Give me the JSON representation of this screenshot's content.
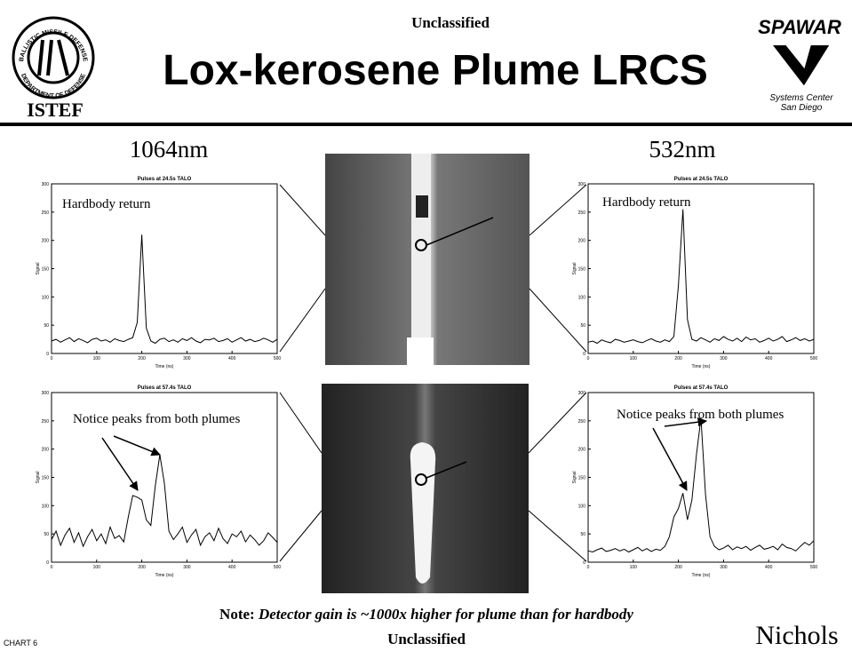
{
  "header": {
    "classification": "Unclassified",
    "title": "Lox-kerosene Plume LRCS",
    "left_logo_ring_top": "BALLISTIC MISSILE DEFENSE",
    "left_logo_ring_bottom": "DEPARTMENT OF DEFENSE",
    "left_logo_label": "ISTEF",
    "right_logo_label": "SPAWAR",
    "right_logo_sub_1": "Systems Center",
    "right_logo_sub_2": "San Diego"
  },
  "columns": {
    "left": "1064nm",
    "right": "532nm"
  },
  "plots": [
    {
      "title": "Pulses at 24.5s TALO",
      "annotation": "Hardbody return",
      "xlabel": "Time (ns)",
      "ylabel": "Signal",
      "xlim": [
        0,
        500
      ],
      "ylim": [
        0,
        300
      ],
      "xticks": [
        0,
        100,
        200,
        300,
        400,
        500
      ],
      "yticks": [
        0,
        50,
        100,
        150,
        200,
        250,
        300
      ],
      "x": [
        0,
        10,
        20,
        30,
        40,
        50,
        60,
        70,
        80,
        90,
        100,
        110,
        120,
        130,
        140,
        150,
        160,
        170,
        180,
        190,
        200,
        210,
        220,
        230,
        240,
        250,
        260,
        270,
        280,
        290,
        300,
        310,
        320,
        330,
        340,
        350,
        360,
        370,
        380,
        390,
        400,
        410,
        420,
        430,
        440,
        450,
        460,
        470,
        480,
        490,
        500
      ],
      "values": [
        22,
        25,
        20,
        24,
        28,
        21,
        26,
        23,
        19,
        25,
        27,
        22,
        24,
        20,
        26,
        23,
        21,
        25,
        28,
        55,
        210,
        45,
        22,
        18,
        25,
        27,
        21,
        24,
        20,
        26,
        23,
        28,
        22,
        19,
        25,
        24,
        27,
        21,
        23,
        26,
        20,
        24,
        28,
        22,
        25,
        21,
        23,
        27,
        24,
        20,
        25
      ]
    },
    {
      "title": "Pulses at 24.5s TALO",
      "annotation": "Hardbody return",
      "xlabel": "Time (ns)",
      "ylabel": "Signal",
      "xlim": [
        0,
        500
      ],
      "ylim": [
        0,
        300
      ],
      "xticks": [
        0,
        100,
        200,
        300,
        400,
        500
      ],
      "yticks": [
        0,
        50,
        100,
        150,
        200,
        250,
        300
      ],
      "x": [
        0,
        10,
        20,
        30,
        40,
        50,
        60,
        70,
        80,
        90,
        100,
        110,
        120,
        130,
        140,
        150,
        160,
        170,
        180,
        190,
        200,
        210,
        220,
        230,
        240,
        250,
        260,
        270,
        280,
        290,
        300,
        310,
        320,
        330,
        340,
        350,
        360,
        370,
        380,
        390,
        400,
        410,
        420,
        430,
        440,
        450,
        460,
        470,
        480,
        490,
        500
      ],
      "values": [
        20,
        22,
        18,
        24,
        21,
        19,
        25,
        23,
        20,
        22,
        24,
        21,
        19,
        23,
        26,
        22,
        20,
        24,
        21,
        30,
        120,
        255,
        60,
        25,
        22,
        28,
        24,
        20,
        26,
        23,
        30,
        25,
        22,
        27,
        21,
        29,
        24,
        26,
        20,
        23,
        27,
        22,
        25,
        30,
        21,
        24,
        28,
        23,
        26,
        22,
        25
      ]
    },
    {
      "title": "Pulses at 57.4s TALO",
      "annotation": "Notice peaks from both plumes",
      "xlabel": "Time (ns)",
      "ylabel": "Signal",
      "xlim": [
        0,
        500
      ],
      "ylim": [
        0,
        300
      ],
      "xticks": [
        0,
        100,
        200,
        300,
        400,
        500
      ],
      "yticks": [
        0,
        50,
        100,
        150,
        200,
        250,
        300
      ],
      "x": [
        0,
        10,
        20,
        30,
        40,
        50,
        60,
        70,
        80,
        90,
        100,
        110,
        120,
        130,
        140,
        150,
        160,
        170,
        180,
        190,
        200,
        210,
        220,
        230,
        240,
        250,
        260,
        270,
        280,
        290,
        300,
        310,
        320,
        330,
        340,
        350,
        360,
        370,
        380,
        390,
        400,
        410,
        420,
        430,
        440,
        450,
        460,
        470,
        480,
        490,
        500
      ],
      "values": [
        40,
        55,
        30,
        48,
        60,
        35,
        52,
        28,
        45,
        58,
        38,
        50,
        33,
        62,
        42,
        47,
        36,
        80,
        118,
        115,
        110,
        75,
        65,
        135,
        190,
        140,
        55,
        40,
        50,
        62,
        35,
        48,
        58,
        30,
        45,
        52,
        38,
        60,
        42,
        33,
        50,
        45,
        55,
        36,
        48,
        40,
        30,
        38,
        52,
        44,
        35
      ]
    },
    {
      "title": "Pulses at 57.4s TALO",
      "annotation": "Notice peaks from both plumes",
      "xlabel": "Time (ns)",
      "ylabel": "Signal",
      "xlim": [
        0,
        500
      ],
      "ylim": [
        0,
        300
      ],
      "xticks": [
        0,
        100,
        200,
        300,
        400,
        500
      ],
      "yticks": [
        0,
        50,
        100,
        150,
        200,
        250,
        300
      ],
      "x": [
        0,
        10,
        20,
        30,
        40,
        50,
        60,
        70,
        80,
        90,
        100,
        110,
        120,
        130,
        140,
        150,
        160,
        170,
        180,
        190,
        200,
        210,
        220,
        230,
        240,
        250,
        260,
        270,
        280,
        290,
        300,
        310,
        320,
        330,
        340,
        350,
        360,
        370,
        380,
        390,
        400,
        410,
        420,
        430,
        440,
        450,
        460,
        470,
        480,
        490,
        500
      ],
      "values": [
        20,
        18,
        22,
        25,
        19,
        21,
        24,
        20,
        23,
        18,
        22,
        26,
        20,
        24,
        19,
        23,
        21,
        28,
        45,
        80,
        95,
        122,
        75,
        110,
        190,
        255,
        120,
        45,
        28,
        22,
        25,
        30,
        22,
        27,
        24,
        28,
        21,
        26,
        30,
        23,
        25,
        28,
        22,
        32,
        26,
        24,
        20,
        28,
        35,
        30,
        38
      ]
    }
  ],
  "note": {
    "prefix": "Note:",
    "text": "Detector gain is ~1000x higher for plume than for hardbody"
  },
  "footer": {
    "classification": "Unclassified",
    "chart_label": "CHART 6",
    "author": "Nichols"
  }
}
